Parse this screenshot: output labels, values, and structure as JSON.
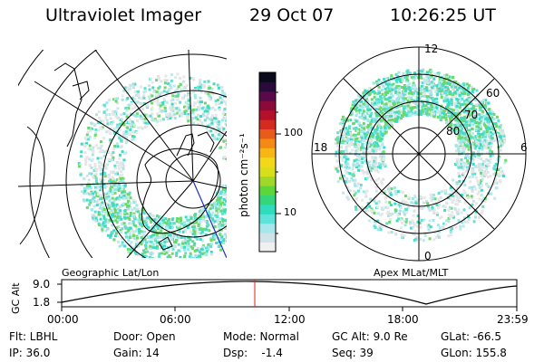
{
  "header": {
    "instrument": "Ultraviolet Imager",
    "date": "29 Oct 07",
    "time": "10:26:25 UT"
  },
  "colorbar": {
    "unit_label": "photon cm⁻²s⁻¹",
    "ticks": [
      "100",
      "10"
    ],
    "colors": [
      "#f0f0f0",
      "#cfe3e8",
      "#a7e6ea",
      "#5fe2d9",
      "#2fdcbe",
      "#35d67a",
      "#5dd63a",
      "#a0d82a",
      "#d8de1a",
      "#f3d81a",
      "#f8b615",
      "#f38a15",
      "#e85b18",
      "#d42a20",
      "#b4102a",
      "#8a0a3a",
      "#5a0a4a",
      "#2a0a3a",
      "#0a0a1a"
    ]
  },
  "left_panel": {
    "label": "Geographic Lat/Lon"
  },
  "right_panel": {
    "label": "Apex  MLat/MLT",
    "mlt_labels": [
      "12",
      "18",
      "6",
      "0"
    ],
    "mlat_labels": [
      "60",
      "70",
      "80"
    ]
  },
  "alt_plot": {
    "ylabel": "GC Alt",
    "yticks": [
      "9.0",
      "1.8"
    ],
    "xticks": [
      "00:00",
      "06:00",
      "12:00",
      "18:00",
      "23:59"
    ],
    "marker_color": "#e02020"
  },
  "status": {
    "flt": "Flt: LBHL",
    "ip": "IP: 36.0",
    "door": "Door: Open",
    "gain": "Gain: 14",
    "mode": "Mode: Normal",
    "dsp": "Dsp:    -1.4",
    "gcalt": "GC Alt: 9.0 Re",
    "seq": "Seq: 39",
    "glat": "GLat: -66.5",
    "glon": "GLon: 155.8"
  }
}
